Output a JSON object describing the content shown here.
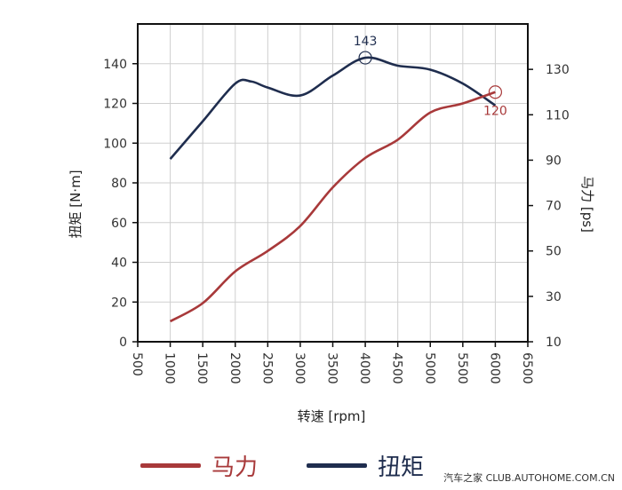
{
  "chart_data": {
    "type": "line",
    "x_axis": {
      "label": "转速 [rpm]",
      "range": [
        500,
        6500
      ],
      "ticks": [
        500,
        1000,
        1500,
        2000,
        2500,
        3000,
        3500,
        4000,
        4500,
        5000,
        5500,
        6000,
        6500
      ]
    },
    "y_left": {
      "label": "扭矩 [N·m]",
      "range": [
        0,
        160
      ],
      "ticks": [
        0,
        20,
        40,
        60,
        80,
        100,
        120,
        140
      ]
    },
    "y_right": {
      "label": "马力 [ps]",
      "range": [
        10,
        150
      ],
      "ticks": [
        10,
        30,
        50,
        70,
        90,
        110,
        130
      ]
    },
    "grid": true,
    "series": [
      {
        "name": "扭矩",
        "axis": "left",
        "color": "#1f2d4e",
        "x": [
          1000,
          1500,
          2000,
          2250,
          2500,
          3000,
          3500,
          4000,
          4500,
          5000,
          5500,
          6000
        ],
        "y": [
          92,
          111,
          130,
          131,
          128,
          124,
          134,
          143,
          139,
          137,
          130,
          119
        ]
      },
      {
        "name": "马力",
        "axis": "right",
        "color": "#a8393a",
        "x": [
          1000,
          1500,
          2000,
          2500,
          3000,
          3500,
          4000,
          4500,
          5000,
          5500,
          6000
        ],
        "y": [
          19,
          27,
          41,
          50,
          61,
          78,
          91,
          99,
          111,
          115,
          120
        ]
      }
    ],
    "annotations": [
      {
        "text": "143",
        "series": "扭矩",
        "x": 4000,
        "y": 143,
        "color": "#1f2d4e"
      },
      {
        "text": "120",
        "series": "马力",
        "x": 6000,
        "y": 120,
        "color": "#a8393a"
      }
    ],
    "legend": {
      "placement": "bottom",
      "items": [
        {
          "label": "马力",
          "color": "#a8393a"
        },
        {
          "label": "扭矩",
          "color": "#1f2d4e"
        }
      ]
    }
  },
  "watermark": "汽车之家 CLUB.AUTOHOME.COM.CN"
}
